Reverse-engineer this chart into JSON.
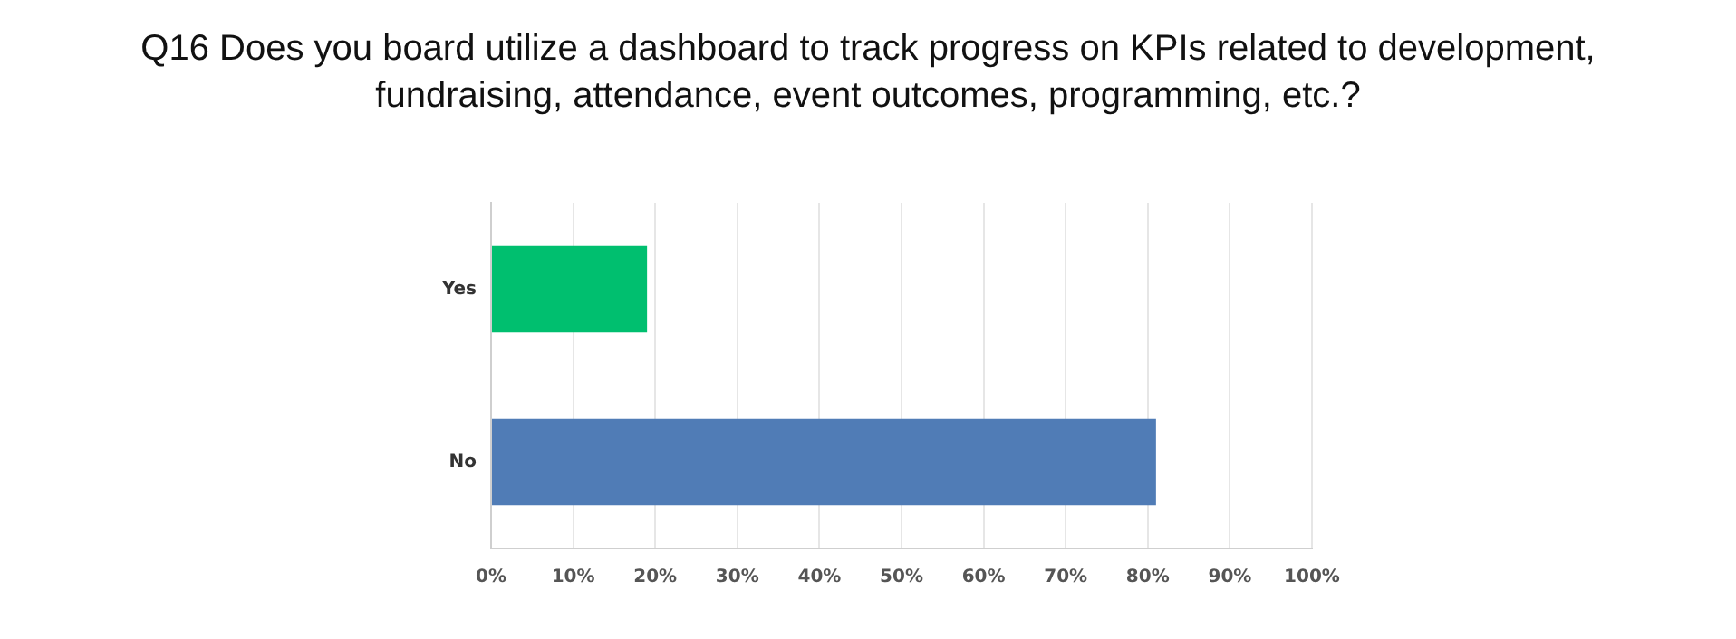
{
  "chart_data": {
    "type": "bar",
    "orientation": "horizontal",
    "title": "Q16 Does you board utilize a dashboard to track progress on KPIs related to development, fundraising, attendance, event outcomes, programming, etc.?",
    "categories": [
      "Yes",
      "No"
    ],
    "values": [
      19,
      81
    ],
    "colors": [
      "#00bf6f",
      "#507cb6"
    ],
    "xlim": [
      0,
      100
    ],
    "xticks": [
      {
        "value": 0,
        "label": "0%"
      },
      {
        "value": 10,
        "label": "10%"
      },
      {
        "value": 20,
        "label": "20%"
      },
      {
        "value": 30,
        "label": "30%"
      },
      {
        "value": 40,
        "label": "40%"
      },
      {
        "value": 50,
        "label": "50%"
      },
      {
        "value": 60,
        "label": "60%"
      },
      {
        "value": 70,
        "label": "70%"
      },
      {
        "value": 80,
        "label": "80%"
      },
      {
        "value": 90,
        "label": "90%"
      },
      {
        "value": 100,
        "label": "100%"
      }
    ],
    "grid": "x",
    "legend": false
  }
}
